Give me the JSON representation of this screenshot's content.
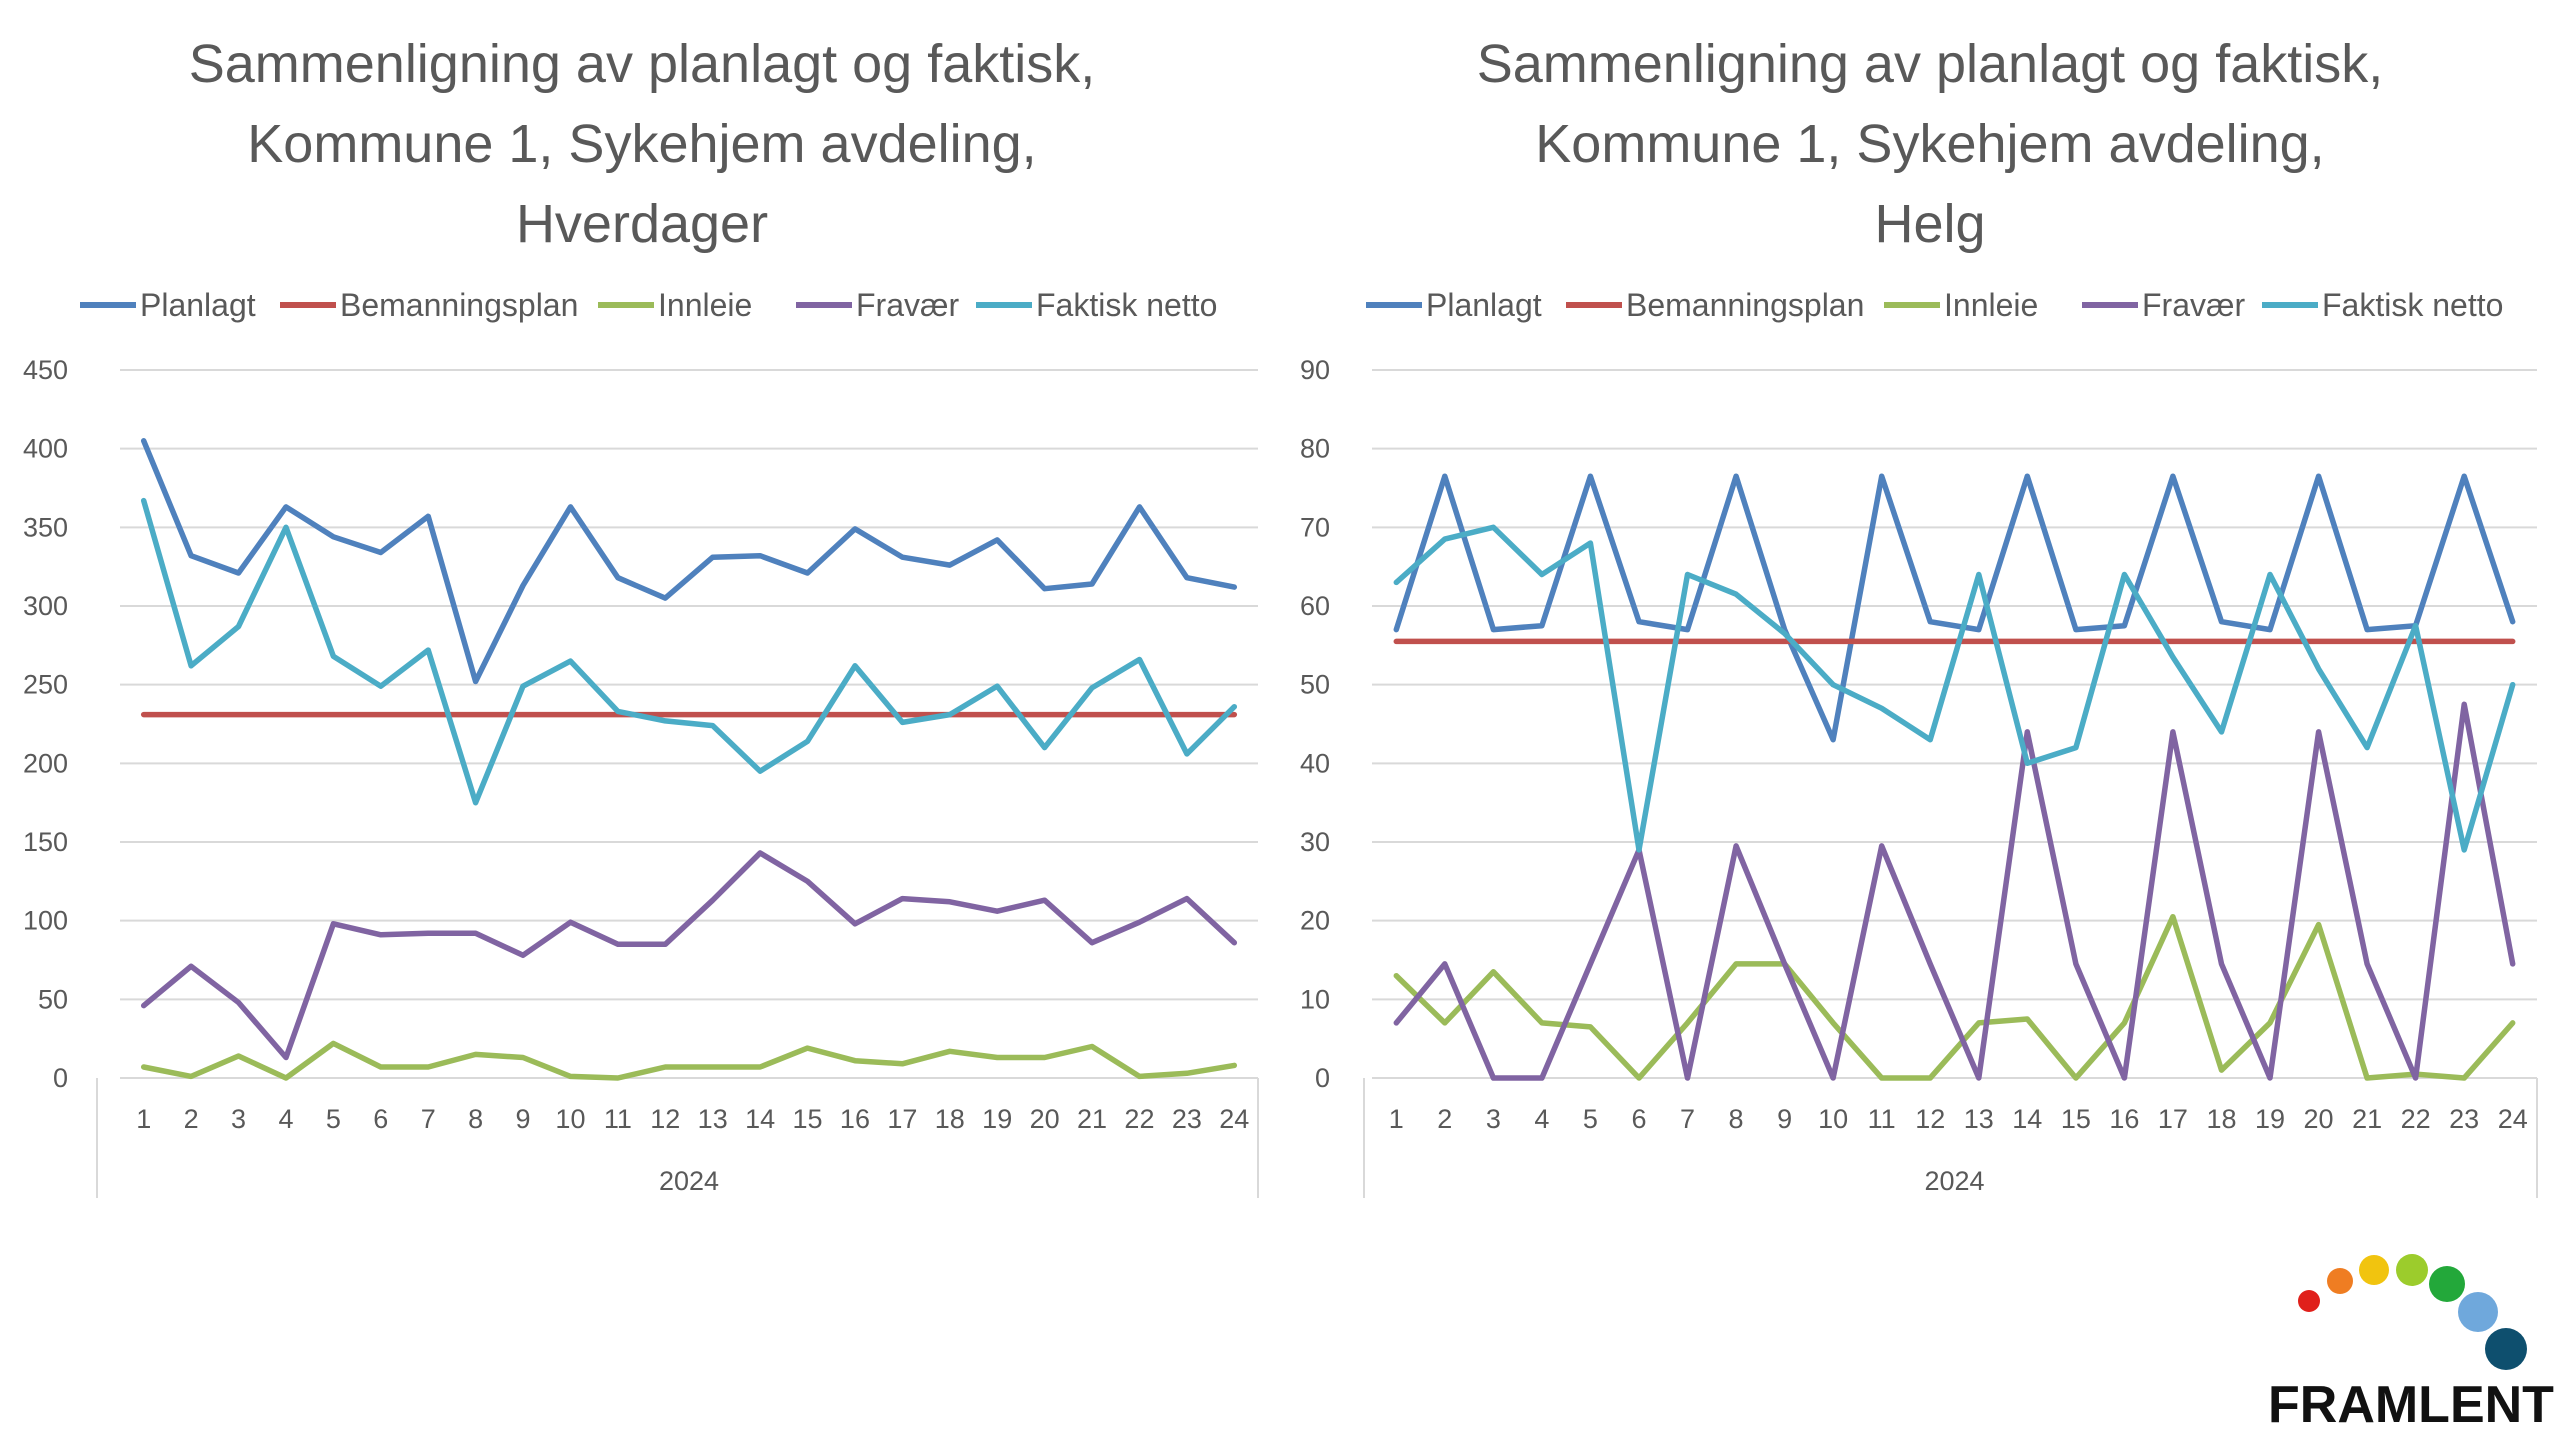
{
  "colors": {
    "Planlagt": "#4f81bd",
    "Bemanningsplan": "#c0504d",
    "Innleie": "#9bbb59",
    "Fravær": "#8064a2",
    "Faktisk netto": "#4bacc6",
    "grid": "#d9d9d9",
    "text": "#595959"
  },
  "chart_data": [
    {
      "type": "line",
      "title": [
        "Sammenligning av planlagt og faktisk,",
        "Kommune 1, Sykehjem avdeling,",
        "Hverdager"
      ],
      "categories": [
        "1",
        "2",
        "3",
        "4",
        "5",
        "6",
        "7",
        "8",
        "9",
        "10",
        "11",
        "12",
        "13",
        "14",
        "15",
        "16",
        "17",
        "18",
        "19",
        "20",
        "21",
        "22",
        "23",
        "24"
      ],
      "group_label": "2024",
      "yticks": [
        "0",
        "50",
        "100",
        "150",
        "200",
        "250",
        "300",
        "350",
        "400",
        "450"
      ],
      "ylim": [
        0,
        450
      ],
      "legend_position": "top",
      "grid": true,
      "series": [
        {
          "name": "Planlagt",
          "values": [
            405,
            332,
            321,
            363,
            344,
            334,
            357,
            252,
            313,
            363,
            318,
            305,
            331,
            332,
            321,
            349,
            331,
            326,
            342,
            311,
            314,
            363,
            318,
            312
          ]
        },
        {
          "name": "Bemanningsplan",
          "values": [
            231,
            231,
            231,
            231,
            231,
            231,
            231,
            231,
            231,
            231,
            231,
            231,
            231,
            231,
            231,
            231,
            231,
            231,
            231,
            231,
            231,
            231,
            231,
            231
          ]
        },
        {
          "name": "Innleie",
          "values": [
            7,
            1,
            14,
            0,
            22,
            7,
            7,
            15,
            13,
            1,
            0,
            7,
            7,
            7,
            19,
            11,
            9,
            17,
            13,
            13,
            20,
            1,
            3,
            8
          ]
        },
        {
          "name": "Fravær",
          "values": [
            46,
            71,
            48,
            13,
            98,
            91,
            92,
            92,
            78,
            99,
            85,
            85,
            113,
            143,
            125,
            98,
            114,
            112,
            106,
            113,
            86,
            99,
            114,
            86
          ]
        },
        {
          "name": "Faktisk netto",
          "values": [
            367,
            262,
            287,
            350,
            268,
            249,
            272,
            175,
            249,
            265,
            233,
            227,
            224,
            195,
            214,
            262,
            226,
            231,
            249,
            210,
            248,
            266,
            206,
            236
          ]
        }
      ]
    },
    {
      "type": "line",
      "title": [
        "Sammenligning av planlagt og faktisk,",
        "Kommune 1, Sykehjem avdeling,",
        "Helg"
      ],
      "categories": [
        "1",
        "2",
        "3",
        "4",
        "5",
        "6",
        "7",
        "8",
        "9",
        "10",
        "11",
        "12",
        "13",
        "14",
        "15",
        "16",
        "17",
        "18",
        "19",
        "20",
        "21",
        "22",
        "23",
        "24"
      ],
      "group_label": "2024",
      "yticks": [
        "0",
        "10",
        "20",
        "30",
        "40",
        "50",
        "60",
        "70",
        "80",
        "90"
      ],
      "ylim": [
        0,
        90
      ],
      "legend_position": "top",
      "grid": true,
      "series": [
        {
          "name": "Planlagt",
          "values": [
            57,
            76.5,
            57,
            57.5,
            76.5,
            58,
            57,
            76.5,
            57,
            43,
            76.5,
            58,
            57,
            76.5,
            57,
            57.5,
            76.5,
            58,
            57,
            76.5,
            57,
            57.5,
            76.5,
            58
          ]
        },
        {
          "name": "Bemanningsplan",
          "values": [
            55.5,
            55.5,
            55.5,
            55.5,
            55.5,
            55.5,
            55.5,
            55.5,
            55.5,
            55.5,
            55.5,
            55.5,
            55.5,
            55.5,
            55.5,
            55.5,
            55.5,
            55.5,
            55.5,
            55.5,
            55.5,
            55.5,
            55.5,
            55.5
          ]
        },
        {
          "name": "Innleie",
          "values": [
            13,
            7,
            13.5,
            7,
            6.5,
            0,
            7,
            14.5,
            14.5,
            7,
            0,
            0,
            7,
            7.5,
            0,
            7,
            20.5,
            1,
            7,
            19.5,
            0,
            0.5,
            0,
            7
          ]
        },
        {
          "name": "Fravær",
          "values": [
            7,
            14.5,
            0,
            0,
            14.5,
            29,
            0,
            29.5,
            14.5,
            0,
            29.5,
            14.5,
            0,
            44,
            14.5,
            0,
            44,
            14.5,
            0,
            44,
            14.5,
            0,
            47.5,
            14.5
          ]
        },
        {
          "name": "Faktisk netto",
          "values": [
            63,
            68.5,
            70,
            64,
            68,
            29,
            64,
            61.5,
            56.5,
            50,
            47,
            43,
            64,
            40,
            42,
            64,
            53.5,
            44,
            64,
            52,
            42,
            57.5,
            29,
            50
          ]
        }
      ]
    }
  ],
  "logo": {
    "text": "FRAMLENT"
  }
}
